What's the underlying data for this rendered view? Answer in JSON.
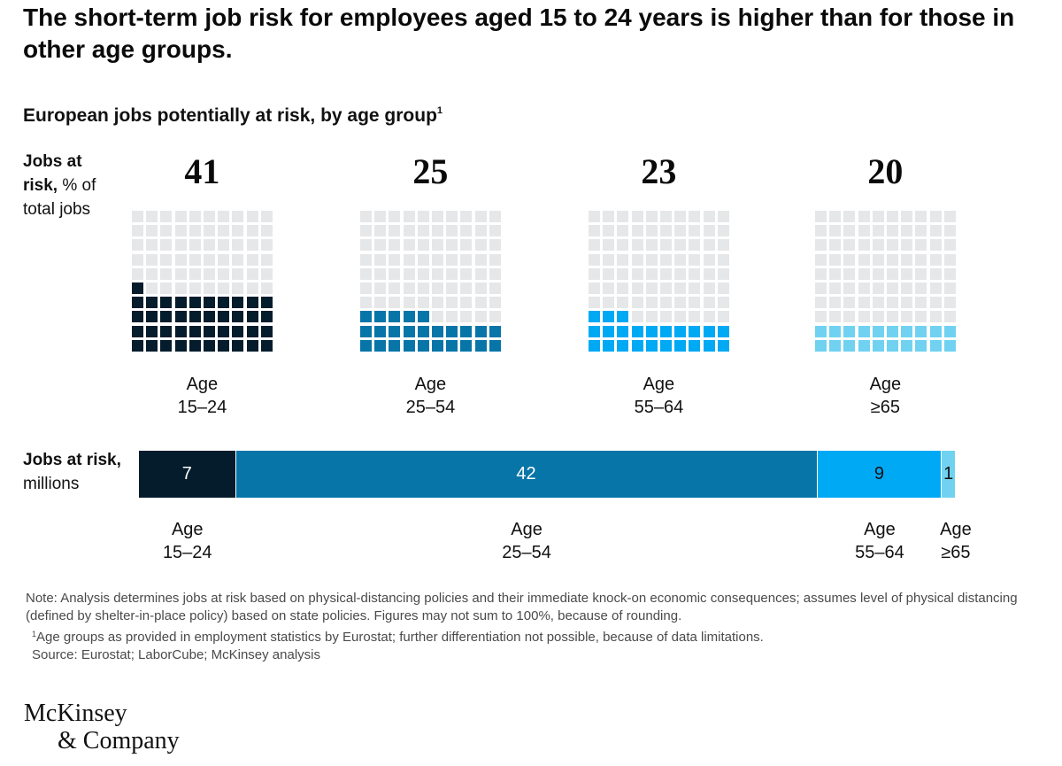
{
  "title": "The short-term job risk for employees aged 15 to 24 years is higher than for those in other age groups.",
  "subtitle": "European jobs potentially at risk, by age group",
  "subtitle_footnote": "1",
  "side_labels": {
    "pct_bold": "Jobs at risk,",
    "pct_rest": "% of total jobs",
    "millions_bold": "Jobs at risk,",
    "millions_rest": "millions"
  },
  "colors": {
    "empty_cell": "#e6e7e9",
    "age_15_24": "#051c2c",
    "age_25_54": "#0775a8",
    "age_55_64": "#00a9f4",
    "age_65_plus": "#70d2f0"
  },
  "chart_data": [
    {
      "type": "waffle",
      "title": "Jobs at risk, % of total jobs",
      "grid": "10x10 squares, filled from bottom-left",
      "categories": [
        "Age 15–24",
        "Age 25–54",
        "Age 55–64",
        "Age ≥65"
      ],
      "groups": [
        {
          "age_word": "Age",
          "age_range": "15–24",
          "value": 41,
          "display": "41",
          "color_key": "age_15_24"
        },
        {
          "age_word": "Age",
          "age_range": "25–54",
          "value": 25,
          "display": "25",
          "color_key": "age_25_54"
        },
        {
          "age_word": "Age",
          "age_range": "55–64",
          "value": 23,
          "display": "23",
          "color_key": "age_55_64"
        },
        {
          "age_word": "Age",
          "age_range": "≥65",
          "value": 20,
          "display": "20",
          "color_key": "age_65_plus"
        }
      ]
    },
    {
      "type": "bar",
      "stacked": true,
      "orientation": "horizontal",
      "title": "Jobs at risk, millions",
      "segments": [
        {
          "age_word": "Age",
          "age_range": "15–24",
          "value": 7,
          "display": "7",
          "color_key": "age_15_24",
          "text_color": "#ffffff"
        },
        {
          "age_word": "Age",
          "age_range": "25–54",
          "value": 42,
          "display": "42",
          "color_key": "age_25_54",
          "text_color": "#ffffff"
        },
        {
          "age_word": "Age",
          "age_range": "55–64",
          "value": 9,
          "display": "9",
          "color_key": "age_55_64",
          "text_color": "#111111"
        },
        {
          "age_word": "Age",
          "age_range": "≥65",
          "value": 1,
          "display": "1",
          "color_key": "age_65_plus",
          "text_color": "#111111"
        }
      ]
    }
  ],
  "notes": {
    "note": "Note: Analysis determines jobs at risk based on physical-distancing policies and their immediate knock-on economic consequences; assumes level of physical distancing (defined by shelter-in-place policy) based on state policies. Figures may not sum to 100%, because of rounding.",
    "footnote_marker": "1",
    "footnote": "Age groups as provided in employment statistics by Eurostat; further differentiation not possible, because of data limitations.",
    "source": "Source: Eurostat; LaborCube; McKinsey analysis"
  },
  "logo": {
    "line1": "McKinsey",
    "line2": "& Company"
  }
}
